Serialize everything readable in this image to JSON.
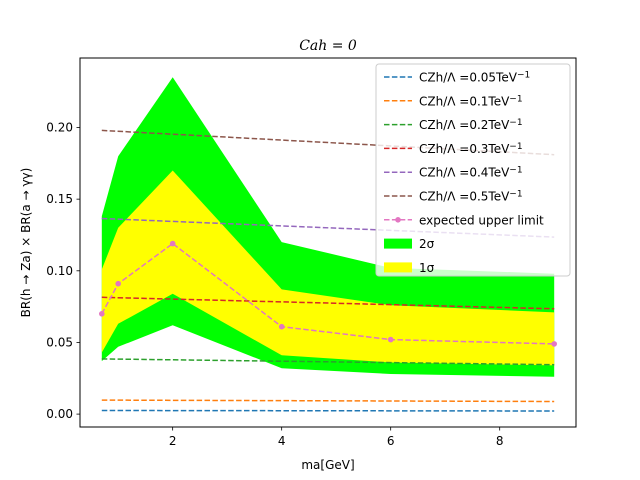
{
  "chart_data": {
    "type": "line",
    "title": "C_{ah} = 0",
    "title_display": "Cah = 0",
    "xlabel": "m_a[GeV]",
    "xlabel_display": "ma[GeV]",
    "ylabel": "BR(h → Za) × BR(a → γγ)",
    "xlim": [
      0.3,
      9.4
    ],
    "ylim": [
      -0.009,
      0.2485
    ],
    "xticks": [
      2,
      4,
      6,
      8
    ],
    "xtick_labels": [
      "2",
      "4",
      "6",
      "8"
    ],
    "yticks": [
      0.0,
      0.05,
      0.1,
      0.15,
      0.2
    ],
    "ytick_labels": [
      "0.00",
      "0.05",
      "0.10",
      "0.15",
      "0.20"
    ],
    "grid": false,
    "legend_position": "top-right",
    "x": [
      0.7,
      1.0,
      2.0,
      4.0,
      6.0,
      9.0
    ],
    "series": [
      {
        "name": "C_Zh/Λ =0.05TeV^-1",
        "label_main": "CZh/Λ =0.05TeV",
        "label_sup": "−1",
        "color": "#1f77b4",
        "style": "dashed",
        "x": [
          0.7,
          9.0
        ],
        "values": [
          0.0025,
          0.0022
        ]
      },
      {
        "name": "C_Zh/Λ =0.1TeV^-1",
        "label_main": "CZh/Λ =0.1TeV",
        "label_sup": "−1",
        "color": "#ff7f0e",
        "style": "dashed",
        "x": [
          0.7,
          9.0
        ],
        "values": [
          0.0098,
          0.0088
        ]
      },
      {
        "name": "C_Zh/Λ =0.2TeV^-1",
        "label_main": "CZh/Λ =0.2TeV",
        "label_sup": "−1",
        "color": "#2ca02c",
        "style": "dashed",
        "x": [
          0.7,
          9.0
        ],
        "values": [
          0.0385,
          0.0345
        ]
      },
      {
        "name": "C_Zh/Λ =0.3TeV^-1",
        "label_main": "CZh/Λ =0.3TeV",
        "label_sup": "−1",
        "color": "#d62728",
        "style": "dashed",
        "x": [
          0.7,
          9.0
        ],
        "values": [
          0.0815,
          0.0735
        ]
      },
      {
        "name": "C_Zh/Λ =0.4TeV^-1",
        "label_main": "CZh/Λ =0.4TeV",
        "label_sup": "−1",
        "color": "#9467bd",
        "style": "dashed",
        "x": [
          0.7,
          9.0
        ],
        "values": [
          0.1365,
          0.1235
        ]
      },
      {
        "name": "C_Zh/Λ =0.5TeV^-1",
        "label_main": "CZh/Λ =0.5TeV",
        "label_sup": "−1",
        "color": "#8c564b",
        "style": "dashed",
        "x": [
          0.7,
          9.0
        ],
        "values": [
          0.198,
          0.181
        ]
      },
      {
        "name": "expected upper limit",
        "label_main": "expected upper limit",
        "label_sup": "",
        "color": "#e377c2",
        "style": "dashed-markers",
        "x": [
          0.7,
          1.0,
          2.0,
          4.0,
          6.0,
          9.0
        ],
        "values": [
          0.07,
          0.091,
          0.119,
          0.061,
          0.052,
          0.049
        ]
      }
    ],
    "bands": [
      {
        "name": "2σ",
        "color": "#00ff00",
        "lower": [
          0.037,
          0.047,
          0.062,
          0.032,
          0.028,
          0.026
        ],
        "upper": [
          0.138,
          0.18,
          0.235,
          0.12,
          0.102,
          0.098
        ]
      },
      {
        "name": "1σ",
        "color": "#ffff00",
        "lower": [
          0.043,
          0.063,
          0.084,
          0.041,
          0.036,
          0.034
        ],
        "upper": [
          0.101,
          0.13,
          0.17,
          0.087,
          0.076,
          0.071
        ]
      }
    ]
  }
}
